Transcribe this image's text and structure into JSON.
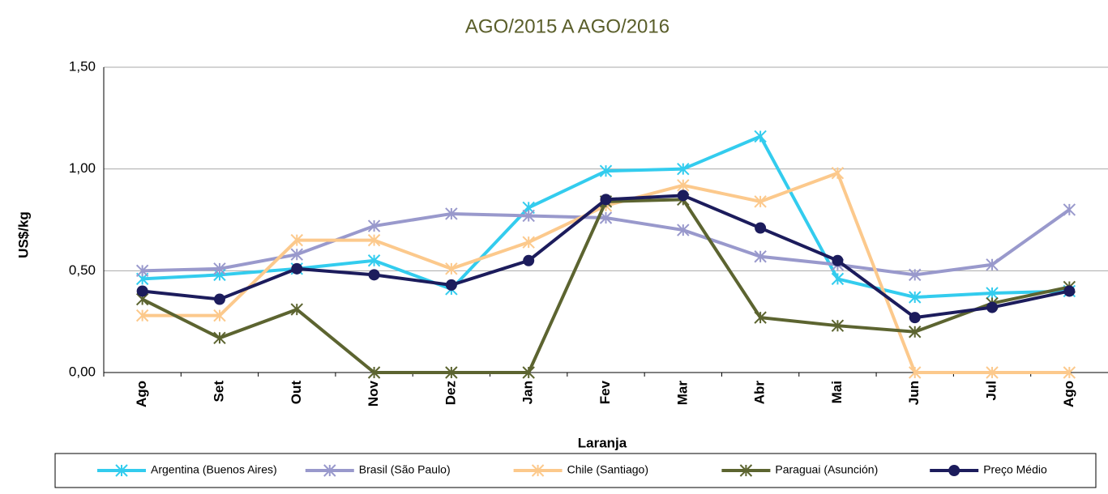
{
  "chart_data": {
    "type": "line",
    "title": "AGO/2015 A AGO/2016",
    "x_label": "Laranja",
    "y_label": "US$/kg",
    "categories": [
      "Ago",
      "Set",
      "Out",
      "Nov",
      "Dez",
      "Jan",
      "Fev",
      "Mar",
      "Abr",
      "Mai",
      "Jun",
      "Jul",
      "Ago"
    ],
    "series": [
      {
        "name": "Argentina (Buenos Aires)",
        "color": "#33ccee",
        "marker": "x",
        "values": [
          0.46,
          0.48,
          0.51,
          0.55,
          0.41,
          0.81,
          0.99,
          1.0,
          1.16,
          0.46,
          0.37,
          0.39,
          0.4
        ]
      },
      {
        "name": "Brasil (São Paulo)",
        "color": "#9999cc",
        "marker": "x",
        "values": [
          0.5,
          0.51,
          0.58,
          0.72,
          0.78,
          0.77,
          0.76,
          0.7,
          0.57,
          0.53,
          0.48,
          0.53,
          0.8
        ]
      },
      {
        "name": "Chile (Santiago)",
        "color": "#fcc98c",
        "marker": "x",
        "values": [
          0.28,
          0.28,
          0.65,
          0.65,
          0.51,
          0.64,
          0.82,
          0.92,
          0.84,
          0.98,
          0,
          0,
          0
        ]
      },
      {
        "name": "Paraguai (Asunción)",
        "color": "#5c6430",
        "marker": "x",
        "values": [
          0.36,
          0.17,
          0.31,
          0,
          0,
          0,
          0.84,
          0.85,
          0.27,
          0.23,
          0.2,
          0.34,
          0.42
        ]
      },
      {
        "name": "Preço Médio",
        "color": "#1c1c5c",
        "marker": "circle",
        "values": [
          0.4,
          0.36,
          0.51,
          0.48,
          0.43,
          0.55,
          0.85,
          0.87,
          0.71,
          0.55,
          0.27,
          0.32,
          0.4
        ]
      }
    ],
    "ylim": [
      0,
      1.5
    ],
    "yticks": [
      {
        "value": 0,
        "label": "0,00"
      },
      {
        "value": 0.5,
        "label": "0,50"
      },
      {
        "value": 1,
        "label": "1,00"
      },
      {
        "value": 1.5,
        "label": "1,50"
      }
    ],
    "grid": true,
    "legend": "bottom"
  }
}
